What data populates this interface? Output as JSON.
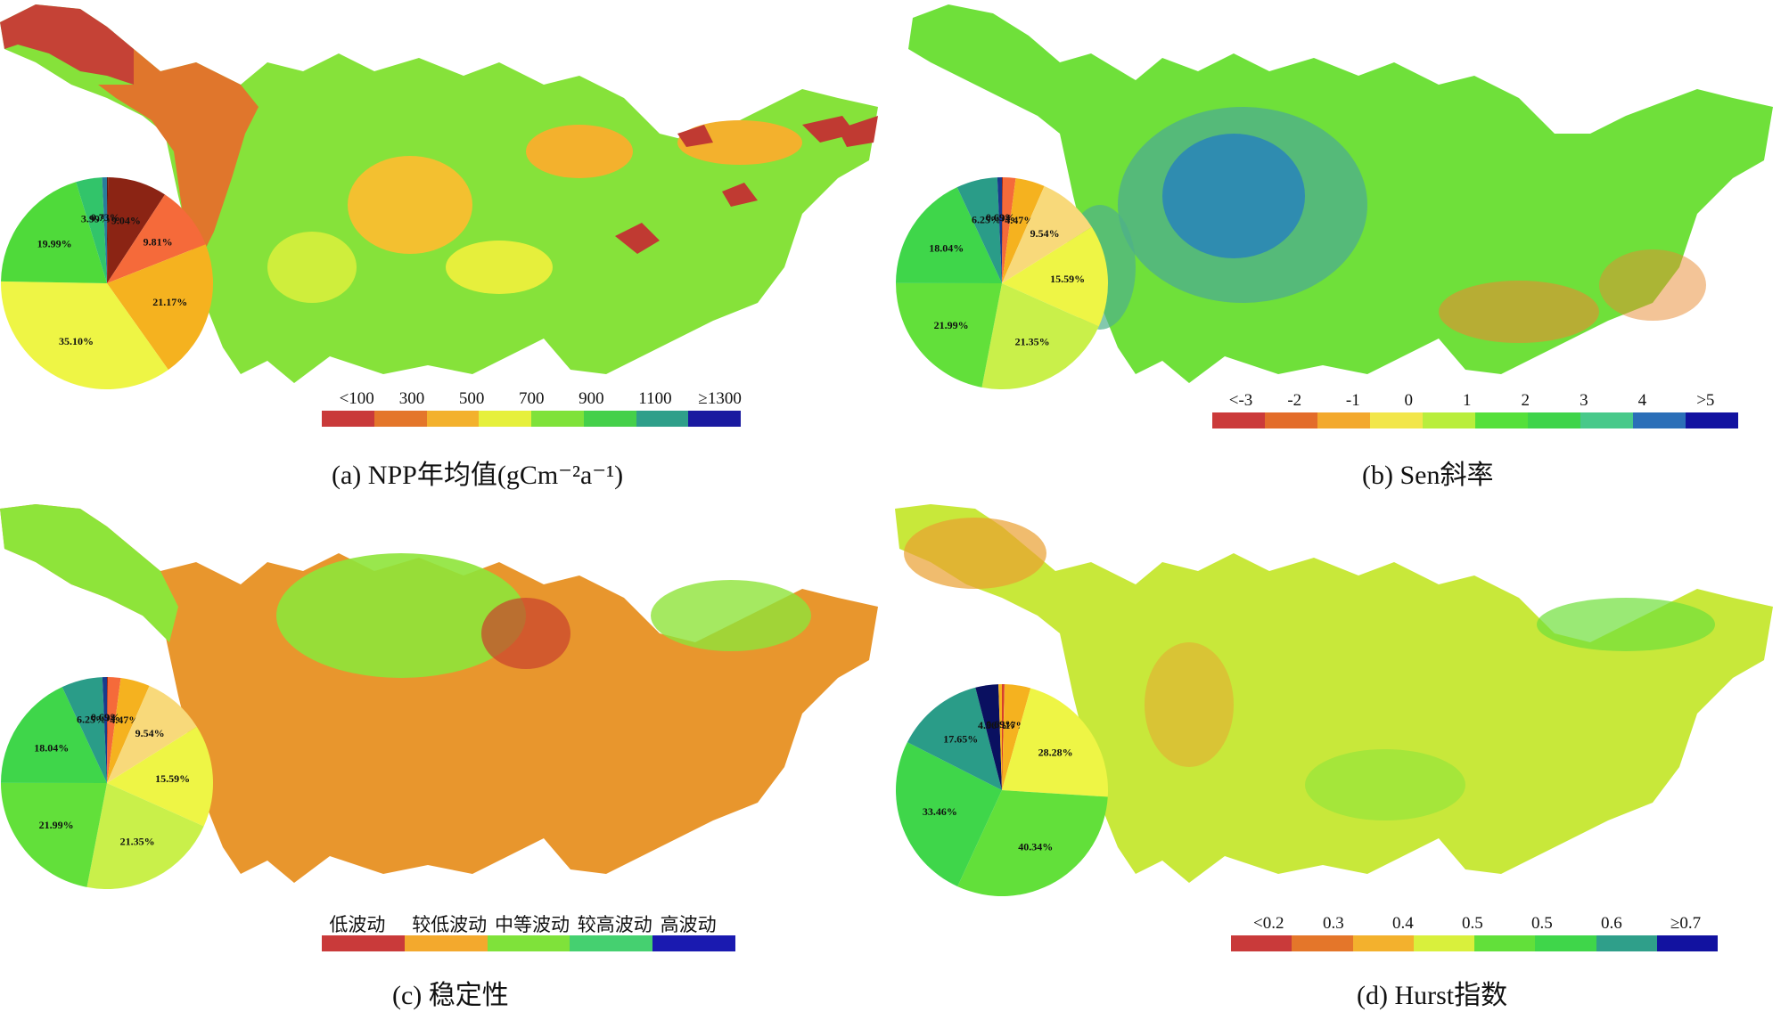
{
  "panels": {
    "a": {
      "caption": "(a) NPP年均值(gCm⁻²a⁻¹)",
      "legend_labels": [
        "<100",
        "300",
        "500",
        "700",
        "900",
        "1100",
        "≥1300"
      ],
      "legend_colors": [
        "#c93a3a",
        "#e4762a",
        "#f3b12d",
        "#e6f03c",
        "#7fe23a",
        "#45d04a",
        "#2f9f8a",
        "#1a1aa0"
      ],
      "pie_values": [
        0.16,
        9.04,
        9.81,
        21.17,
        35.1,
        19.99,
        3.99,
        0.73
      ],
      "pie_labels": [
        "0.16%",
        "9.04%",
        "9.81%",
        "21.17%",
        "35.10%",
        "19.99%",
        "3.99%",
        "0.73%"
      ],
      "pie_colors": [
        "#5a1a12",
        "#8b2414",
        "#f56a3a",
        "#f5b21f",
        "#eef545",
        "#4fda3a",
        "#32c46a",
        "#2a7c9c"
      ]
    },
    "b": {
      "caption": "(b) Sen斜率",
      "legend_labels": [
        "<-3",
        "-2",
        "-1",
        "0",
        "1",
        "2",
        "3",
        "4",
        ">5"
      ],
      "legend_colors": [
        "#cb3a3a",
        "#e36c2a",
        "#f3a92d",
        "#f2e64a",
        "#b9ee3c",
        "#55e03a",
        "#3fd44a",
        "#48c98a",
        "#2b6fb8",
        "#1212a0"
      ],
      "pie_values": [
        0.14,
        1.94,
        4.47,
        9.54,
        15.59,
        21.35,
        21.99,
        18.04,
        6.25,
        0.69
      ],
      "pie_labels": [
        "0.14%",
        "1.94%",
        "4.47%",
        "9.54%",
        "15.59%",
        "21.35%",
        "21.99%",
        "18.04%",
        "6.25%",
        "0.69%"
      ],
      "pie_colors": [
        "#a02a1a",
        "#f56a3a",
        "#f5b21f",
        "#f8d97a",
        "#eef545",
        "#c9f04a",
        "#62e03a",
        "#3fd64a",
        "#2a9c88",
        "#1a3a8c"
      ]
    },
    "c": {
      "caption": "(c) 稳定性",
      "legend_labels": [
        "低波动",
        "较低波动",
        "中等波动",
        "较高波动",
        "高波动"
      ],
      "legend_colors": [
        "#c93a3a",
        "#f3a92d",
        "#7fe23a",
        "#45d070",
        "#1a1ab0"
      ],
      "pie_values": [
        0.14,
        1.94,
        4.47,
        9.54,
        15.59,
        21.35,
        21.99,
        18.04,
        6.25,
        0.69
      ],
      "pie_labels": [
        "0.14%",
        "1.94%",
        "4.47%",
        "9.54%",
        "15.59%",
        "21.35%",
        "21.99%",
        "18.04%",
        "6.25%",
        "0.69%"
      ],
      "pie_colors": [
        "#a02a1a",
        "#f56a3a",
        "#f5b21f",
        "#f8d97a",
        "#eef545",
        "#c9f04a",
        "#62e03a",
        "#3fd64a",
        "#2a9c88",
        "#1a3a8c"
      ]
    },
    "d": {
      "caption": "(d) Hurst指数",
      "legend_labels": [
        "<0.2",
        "0.3",
        "0.4",
        "0.5",
        "0.5",
        "0.6",
        "≥0.7"
      ],
      "legend_colors": [
        "#c93a3a",
        "#e4762a",
        "#f3b12d",
        "#d9f03c",
        "#62e03a",
        "#3fd64a",
        "#2f9f8a",
        "#1212a0"
      ],
      "pie_values": [
        0.51,
        0.02,
        5.17,
        28.28,
        40.34,
        33.46,
        17.65,
        4.56,
        0.69
      ],
      "pie_labels": [
        "0.51%",
        "0.02%",
        "5.17%",
        "28.28%",
        "40.34%",
        "33.46%",
        "17.65%",
        "4.56%",
        "0.69%"
      ],
      "pie_colors": [
        "#d8402a",
        "#f5872a",
        "#f5b21f",
        "#eef545",
        "#62e03a",
        "#3fd64a",
        "#2a9c88",
        "#0a1060",
        "#f5b21f"
      ]
    }
  },
  "palette": {
    "a_main": "#8ee43a",
    "a_high": "#f3b12d",
    "a_low": "#c94a2a",
    "b_main": "#6fe03a",
    "b_blue": "#2f8cb0",
    "c_main": "#e8962d",
    "c_green": "#8ee43a",
    "d_main": "#c8e83a",
    "d_orange": "#e9a030"
  }
}
